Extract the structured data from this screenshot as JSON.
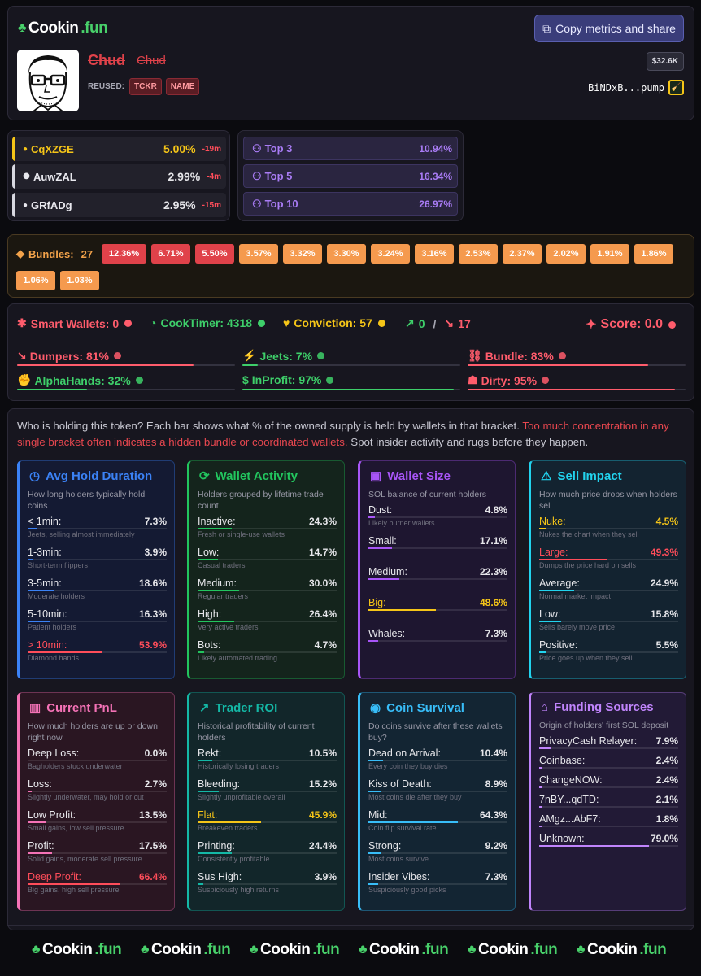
{
  "header": {
    "brand": {
      "name": "Cookin",
      "tld": ".fun"
    },
    "copy_button": "Copy metrics and share",
    "token_name": "Chud",
    "token_symbol": "Chud",
    "reused_label": "REUSED:",
    "reused_tags": [
      "TCKR",
      "NAME"
    ],
    "market_cap": "$32.6K",
    "address": "BiNDxB...pump"
  },
  "holders": [
    {
      "name": "CqXZGE",
      "pct": "5.00%",
      "age": "-19m",
      "color": "#f5c518"
    },
    {
      "name": "AuwZAL",
      "pct": "2.99%",
      "age": "-4m",
      "color": "#e8e8ee"
    },
    {
      "name": "GRfADg",
      "pct": "2.95%",
      "age": "-15m",
      "color": "#e8e8ee"
    }
  ],
  "top_holders": [
    {
      "label": "Top 3",
      "pct": "10.94%"
    },
    {
      "label": "Top 5",
      "pct": "16.34%"
    },
    {
      "label": "Top 10",
      "pct": "26.97%"
    }
  ],
  "bundles": {
    "label": "Bundles:",
    "count": "27",
    "chips": [
      {
        "v": "12.36%",
        "level": "high"
      },
      {
        "v": "6.71%",
        "level": "high"
      },
      {
        "v": "5.50%",
        "level": "high"
      },
      {
        "v": "3.57%",
        "level": "mid"
      },
      {
        "v": "3.32%",
        "level": "mid"
      },
      {
        "v": "3.30%",
        "level": "mid"
      },
      {
        "v": "3.24%",
        "level": "mid"
      },
      {
        "v": "3.16%",
        "level": "mid"
      },
      {
        "v": "2.53%",
        "level": "mid"
      },
      {
        "v": "2.37%",
        "level": "mid"
      },
      {
        "v": "2.02%",
        "level": "mid"
      },
      {
        "v": "1.91%",
        "level": "mid"
      },
      {
        "v": "1.86%",
        "level": "mid"
      },
      {
        "v": "1.06%",
        "level": "mid"
      },
      {
        "v": "1.03%",
        "level": "mid"
      }
    ]
  },
  "metrics": {
    "smart_wallets": "Smart Wallets: 0",
    "cook_timer": "CookTimer: 4318",
    "conviction": "Conviction: 57",
    "trend_up": "0",
    "trend_sep": "/",
    "trend_down": "17",
    "score": "Score: 0.0",
    "stats": [
      {
        "label": "Dumpers: 81%",
        "fill": 0.81,
        "color": "#ff5c6c"
      },
      {
        "label": "Jeets: 7%",
        "fill": 0.07,
        "color": "#3ecf6a"
      },
      {
        "label": "Bundle: 83%",
        "fill": 0.83,
        "color": "#ff5c6c"
      },
      {
        "label": "AlphaHands: 32%",
        "fill": 0.32,
        "color": "#3ecf6a"
      },
      {
        "label": "InProfit: 97%",
        "fill": 0.97,
        "color": "#3ecf6a"
      },
      {
        "label": "Dirty: 95%",
        "fill": 0.95,
        "color": "#ff5c6c"
      }
    ]
  },
  "intro": {
    "part1": "Who is holding this token? Each bar shows what % of the owned supply is held by wallets in that bracket. ",
    "part2": "Too much concentration in any single bracket often indicates a hidden bundle or coordinated wallets.",
    "part3": " Spot insider activity and rugs before they happen."
  },
  "cards": [
    {
      "title": "Avg Hold Duration",
      "icon": "clock-icon",
      "accent": "#3b82f6",
      "bg": "#141a33",
      "sub": "How long holders typically hold coins",
      "rows": [
        {
          "l": "< 1min:",
          "v": "7.3%",
          "f": 0.073,
          "d": "Jeets, selling almost immediately"
        },
        {
          "l": "1-3min:",
          "v": "3.9%",
          "f": 0.039,
          "d": "Short-term flippers"
        },
        {
          "l": "3-5min:",
          "v": "18.6%",
          "f": 0.186,
          "d": "Moderate holders"
        },
        {
          "l": "5-10min:",
          "v": "16.3%",
          "f": 0.163,
          "d": "Patient holders"
        },
        {
          "l": "> 10min:",
          "v": "53.9%",
          "f": 0.539,
          "d": "Diamond hands",
          "hl": "#ff4d5a"
        }
      ]
    },
    {
      "title": "Wallet Activity",
      "icon": "refresh-icon",
      "accent": "#22c55e",
      "bg": "#14241c",
      "sub": "Holders grouped by lifetime trade count",
      "rows": [
        {
          "l": "Inactive:",
          "v": "24.3%",
          "f": 0.243,
          "d": "Fresh or single-use wallets"
        },
        {
          "l": "Low:",
          "v": "14.7%",
          "f": 0.147,
          "d": "Casual traders"
        },
        {
          "l": "Medium:",
          "v": "30.0%",
          "f": 0.3,
          "d": "Regular traders"
        },
        {
          "l": "High:",
          "v": "26.4%",
          "f": 0.264,
          "d": "Very active traders"
        },
        {
          "l": "Bots:",
          "v": "4.7%",
          "f": 0.047,
          "d": "Likely automated trading"
        }
      ]
    },
    {
      "title": "Wallet Size",
      "icon": "wallet-icon",
      "accent": "#a855f7",
      "bg": "#1e1630",
      "sub": "SOL balance of current holders",
      "rows": [
        {
          "l": "Dust:",
          "v": "4.8%",
          "f": 0.048,
          "d": "Likely burner wallets"
        },
        {
          "l": "Small:",
          "v": "17.1%",
          "f": 0.171,
          "d": ""
        },
        {
          "l": "Medium:",
          "v": "22.3%",
          "f": 0.223,
          "d": ""
        },
        {
          "l": "Big:",
          "v": "48.6%",
          "f": 0.486,
          "d": "",
          "hl": "#f5c518"
        },
        {
          "l": "Whales:",
          "v": "7.3%",
          "f": 0.073,
          "d": ""
        }
      ]
    },
    {
      "title": "Sell Impact",
      "icon": "warning-icon",
      "accent": "#22d3ee",
      "bg": "#132330",
      "sub": "How much price drops when holders sell",
      "rows": [
        {
          "l": "Nuke:",
          "v": "4.5%",
          "f": 0.045,
          "d": "Nukes the chart when they sell",
          "hl": "#f5c518"
        },
        {
          "l": "Large:",
          "v": "49.3%",
          "f": 0.493,
          "d": "Dumps the price hard on sells",
          "hl": "#ff4d5a"
        },
        {
          "l": "Average:",
          "v": "24.9%",
          "f": 0.249,
          "d": "Normal market impact"
        },
        {
          "l": "Low:",
          "v": "15.8%",
          "f": 0.158,
          "d": "Sells barely move price"
        },
        {
          "l": "Positive:",
          "v": "5.5%",
          "f": 0.055,
          "d": "Price goes up when they sell"
        }
      ]
    },
    {
      "title": "Current PnL",
      "icon": "bar-chart-icon",
      "accent": "#f472b6",
      "bg": "#2a1622",
      "sub": "How much holders are up or down right now",
      "rows": [
        {
          "l": "Deep Loss:",
          "v": "0.0%",
          "f": 0,
          "d": "Bagholders stuck underwater"
        },
        {
          "l": "Loss:",
          "v": "2.7%",
          "f": 0.027,
          "d": "Slightly underwater, may hold or cut"
        },
        {
          "l": "Low Profit:",
          "v": "13.5%",
          "f": 0.135,
          "d": "Small gains, low sell pressure"
        },
        {
          "l": "Profit:",
          "v": "17.5%",
          "f": 0.175,
          "d": "Solid gains, moderate sell pressure"
        },
        {
          "l": "Deep Profit:",
          "v": "66.4%",
          "f": 0.664,
          "d": "Big gains, high sell pressure",
          "hl": "#ff4d5a"
        }
      ]
    },
    {
      "title": "Trader ROI",
      "icon": "trend-up-icon",
      "accent": "#14b8a6",
      "bg": "#12262a",
      "sub": "Historical profitability of current holders",
      "rows": [
        {
          "l": "Rekt:",
          "v": "10.5%",
          "f": 0.105,
          "d": "Historically losing traders"
        },
        {
          "l": "Bleeding:",
          "v": "15.2%",
          "f": 0.152,
          "d": "Slightly unprofitable overall"
        },
        {
          "l": "Flat:",
          "v": "45.9%",
          "f": 0.459,
          "d": "Breakeven traders",
          "hl": "#f5c518"
        },
        {
          "l": "Printing:",
          "v": "24.4%",
          "f": 0.244,
          "d": "Consistently profitable"
        },
        {
          "l": "Sus High:",
          "v": "3.9%",
          "f": 0.039,
          "d": "Suspiciously high returns"
        }
      ]
    },
    {
      "title": "Coin Survival",
      "icon": "radio-icon",
      "accent": "#38bdf8",
      "bg": "#132533",
      "sub": "Do coins survive after these wallets buy?",
      "rows": [
        {
          "l": "Dead on Arrival:",
          "v": "10.4%",
          "f": 0.104,
          "d": "Every coin they buy dies"
        },
        {
          "l": "Kiss of Death:",
          "v": "8.9%",
          "f": 0.089,
          "d": "Most coins die after they buy"
        },
        {
          "l": "Mid:",
          "v": "64.3%",
          "f": 0.643,
          "d": "Coin flip survival rate"
        },
        {
          "l": "Strong:",
          "v": "9.2%",
          "f": 0.092,
          "d": "Most coins survive"
        },
        {
          "l": "Insider Vibes:",
          "v": "7.3%",
          "f": 0.073,
          "d": "Suspiciously good picks"
        }
      ]
    },
    {
      "title": "Funding Sources",
      "icon": "bank-icon",
      "accent": "#c084fc",
      "bg": "#221a36",
      "sub": "Origin of holders' first SOL deposit",
      "fund": true,
      "rows": [
        {
          "l": "PrivacyCash Relayer:",
          "v": "7.9%",
          "f": 0.079
        },
        {
          "l": "Coinbase:",
          "v": "2.4%",
          "f": 0.024
        },
        {
          "l": "ChangeNOW:",
          "v": "2.4%",
          "f": 0.024
        },
        {
          "l": "7nBY...qdTD:",
          "v": "2.1%",
          "f": 0.021
        },
        {
          "l": "AMgz...AbF7:",
          "v": "1.8%",
          "f": 0.018
        },
        {
          "l": "Unknown:",
          "v": "79.0%",
          "f": 0.79
        }
      ]
    }
  ],
  "footer": {
    "brand_name": "Cookin",
    "brand_tld": ".fun",
    "repeat": 6
  }
}
